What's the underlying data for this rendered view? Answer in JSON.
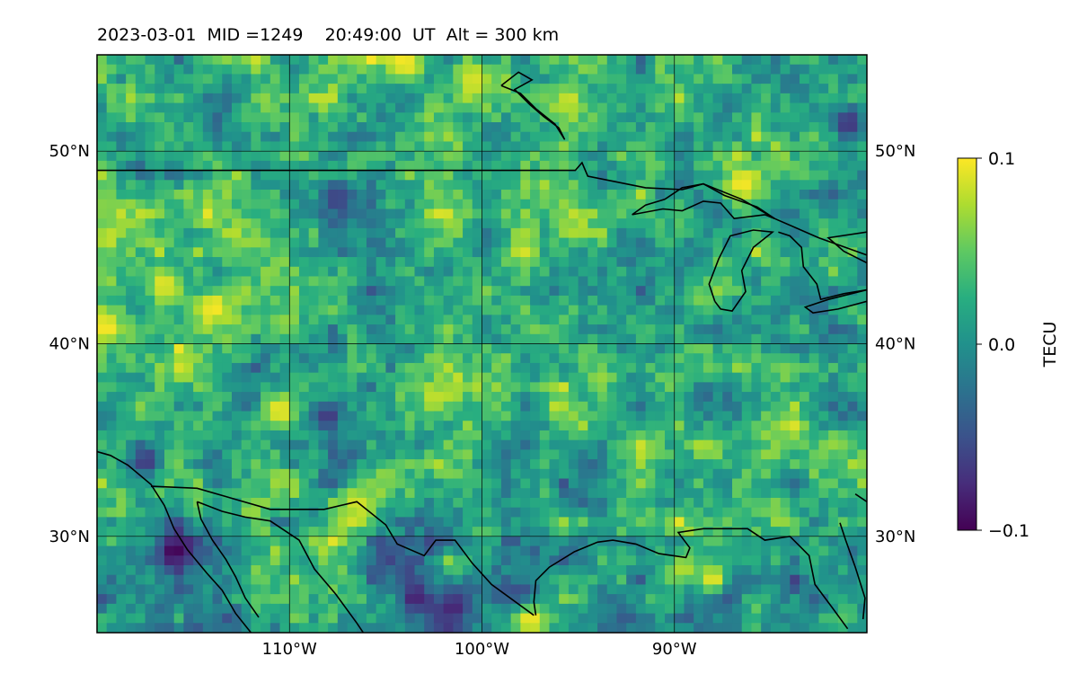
{
  "chart_data": {
    "type": "heatmap",
    "title": "2023-03-01  MID =1249    20:49:00  UT  Alt = 300 km",
    "date": "2023-03-01",
    "mid": "1249",
    "time_ut": "20:49:00",
    "altitude_km": 300,
    "x_range": [
      -120,
      -80
    ],
    "y_range": [
      25,
      55
    ],
    "x_ticks": [
      {
        "value": -110,
        "label": "110°W"
      },
      {
        "value": -100,
        "label": "100°W"
      },
      {
        "value": -90,
        "label": "90°W"
      }
    ],
    "y_ticks": [
      {
        "value": 30,
        "label": "30°N"
      },
      {
        "value": 40,
        "label": "40°N"
      },
      {
        "value": 50,
        "label": "50°N"
      }
    ],
    "grid": true,
    "colormap": "viridis",
    "colorbar": {
      "label": "TECU",
      "min": -0.1,
      "max": 0.1,
      "ticks": [
        {
          "value": 0.1,
          "label": "0.1"
        },
        {
          "value": 0.0,
          "label": "0.0"
        },
        {
          "value": -0.1,
          "label": "−0.1"
        }
      ]
    },
    "grid_resolution_deg": [
      0.5,
      0.5
    ],
    "hotspots": [
      {
        "lon": -116,
        "lat": 29.2,
        "value": -0.1
      },
      {
        "lon": -87.5,
        "lat": 27.2,
        "value": -0.09
      },
      {
        "lon": -101.5,
        "lat": 26.3,
        "value": -0.08
      },
      {
        "lon": -103.5,
        "lat": 26.8,
        "value": -0.085
      },
      {
        "lon": -89,
        "lat": 27.8,
        "value": -0.06
      },
      {
        "lon": -98,
        "lat": 27.0,
        "value": -0.06
      },
      {
        "lon": -107.5,
        "lat": 47.6,
        "value": -0.06
      },
      {
        "lon": -108,
        "lat": 36.3,
        "value": -0.07
      },
      {
        "lon": -117.5,
        "lat": 33.9,
        "value": -0.07
      },
      {
        "lon": -81,
        "lat": 51.4,
        "value": -0.07
      },
      {
        "lon": -88,
        "lat": 27.8,
        "value": 0.1
      },
      {
        "lon": -97.5,
        "lat": 25.6,
        "value": 0.1
      },
      {
        "lon": -104,
        "lat": 54.6,
        "value": 0.1
      },
      {
        "lon": -95.5,
        "lat": 52.6,
        "value": 0.09
      },
      {
        "lon": -114,
        "lat": 41.9,
        "value": 0.1
      },
      {
        "lon": -116.5,
        "lat": 43.0,
        "value": 0.1
      },
      {
        "lon": -119.5,
        "lat": 40.9,
        "value": 0.1
      },
      {
        "lon": -86.5,
        "lat": 48.3,
        "value": 0.1
      },
      {
        "lon": -110.5,
        "lat": 36.5,
        "value": 0.1
      },
      {
        "lon": -106.5,
        "lat": 31.7,
        "value": 0.09
      },
      {
        "lon": -100.5,
        "lat": 53.8,
        "value": 0.09
      },
      {
        "lon": -89.5,
        "lat": 28.3,
        "value": 0.08
      }
    ]
  }
}
